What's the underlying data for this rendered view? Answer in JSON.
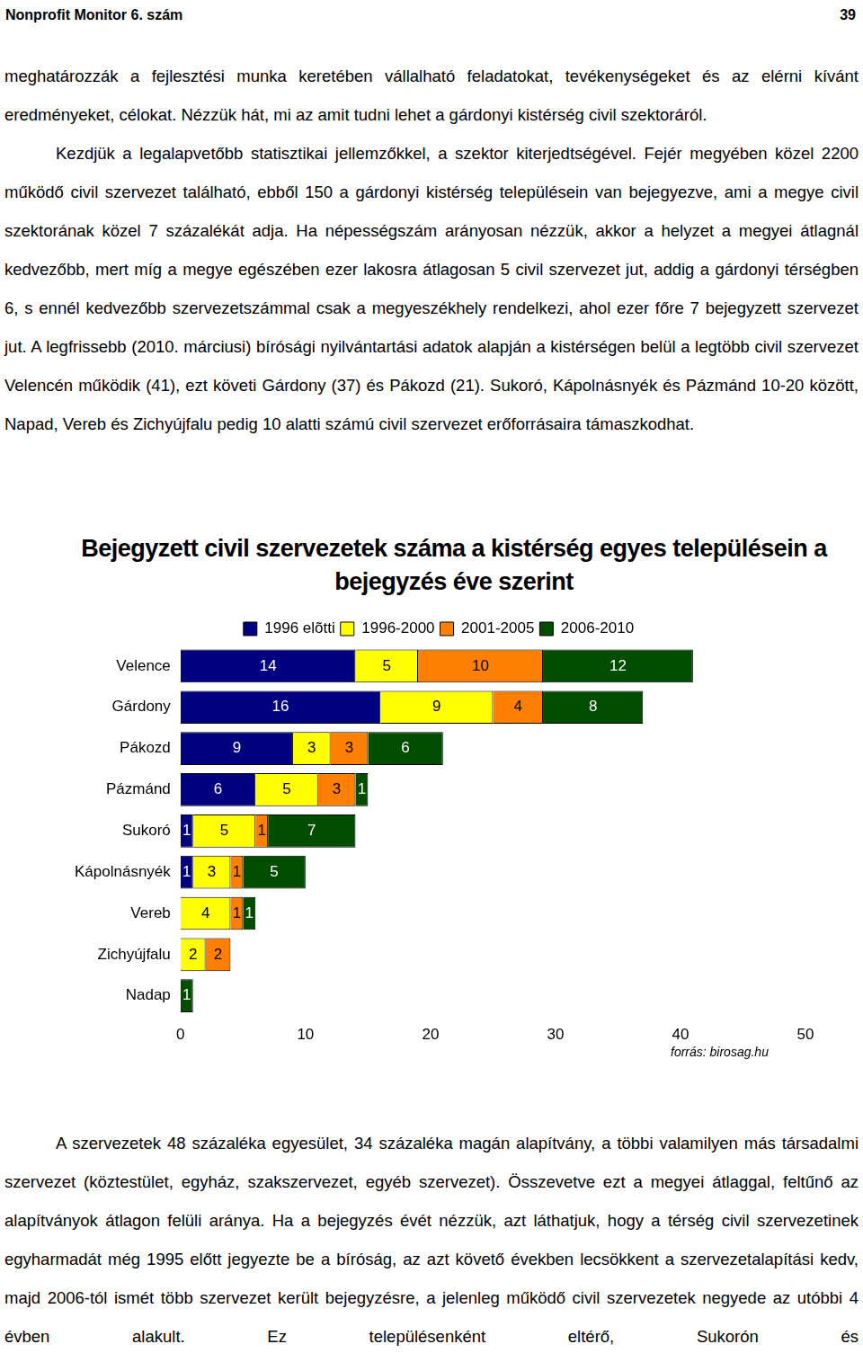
{
  "header": {
    "left": "Nonprofit Monitor 6. szám",
    "right": "39"
  },
  "paragraphs_top": [
    "meghatározzák a fejlesztési munka keretében vállalható feladatokat, tevékenységeket és az elérni kívánt eredményeket, célokat. Nézzük hát, mi az amit tudni lehet a gárdonyi kistérség civil szektoráról.",
    "Kezdjük a legalapvetőbb statisztikai jellemzőkkel, a szektor kiterjedtségével. Fejér megyében közel 2200 működő civil szervezet található, ebből 150 a gárdonyi kistérség településein van bejegyezve, ami a megye civil szektorának közel 7 százalékát adja. Ha népességszám arányosan nézzük, akkor a helyzet a megyei átlagnál kedvezőbb, mert míg a megye egészében ezer lakosra átlagosan 5 civil szervezet jut, addig a gárdonyi térségben 6, s ennél kedvezőbb szervezetszámmal csak a megyeszékhely rendelkezi, ahol ezer főre 7 bejegyzett szervezet jut. A legfrissebb (2010. márciusi) bírósági nyilvántartási adatok alapján a kistérségen belül a legtöbb civil szervezet Velencén működik (41), ezt követi Gárdony (37) és Pákozd (21). Sukoró, Kápolnásnyék és Pázmánd 10-20 között, Napad, Vereb és Zichyújfalu pedig 10 alatti számú civil szervezet erőforrásaira támaszkodhat."
  ],
  "chart_data": {
    "type": "bar",
    "title": "Bejegyzett civil szervezetek száma a kistérség egyes településein a bejegyzés éve szerint",
    "orientation": "horizontal",
    "stacked": true,
    "data_labels": true,
    "grid": false,
    "legend": "top",
    "categories": [
      "Velence",
      "Gárdony",
      "Pákozd",
      "Pázmánd",
      "Sukoró",
      "Kápolnásnyék",
      "Vereb",
      "Zichyújfalu",
      "Nadap"
    ],
    "series": [
      {
        "name": "1996 elõtti",
        "color": "#000080",
        "values": [
          14,
          16,
          9,
          6,
          1,
          1,
          null,
          null,
          null
        ]
      },
      {
        "name": "1996-2000",
        "color": "#ffff00",
        "values": [
          5,
          9,
          3,
          5,
          5,
          3,
          4,
          2,
          null
        ]
      },
      {
        "name": "2001-2005",
        "color": "#ff8000",
        "values": [
          10,
          4,
          3,
          3,
          1,
          1,
          1,
          2,
          null
        ]
      },
      {
        "name": "2006-2010",
        "color": "#004d00",
        "values": [
          12,
          8,
          6,
          1,
          7,
          5,
          1,
          null,
          1
        ]
      }
    ],
    "xlim": [
      0,
      50
    ],
    "xticks": [
      0,
      10,
      20,
      30,
      40,
      50
    ],
    "source": "forrás: birosag.hu"
  },
  "paragraphs_bottom": [
    "A szervezetek 48 százaléka egyesület, 34 százaléka magán alapítvány, a többi valamilyen más társadalmi szervezet (köztestület, egyház, szakszervezet, egyéb szervezet). Összevetve ezt a megyei átlaggal, feltűnő az alapítványok átlagon felüli aránya. Ha a bejegyzés évét nézzük, azt láthatjuk, hogy a térség civil szervezetinek egyharmadát még 1995 előtt jegyezte be a bíróság, az azt követő években lecsökkent a szervezetalapítási kedv, majd 2006-tól ismét több szervezet került bejegyzésre, a jelenleg működő civil szervezetek negyede az utóbbi 4 évben alakult. Ez településenként eltérő, Sukorón és"
  ]
}
